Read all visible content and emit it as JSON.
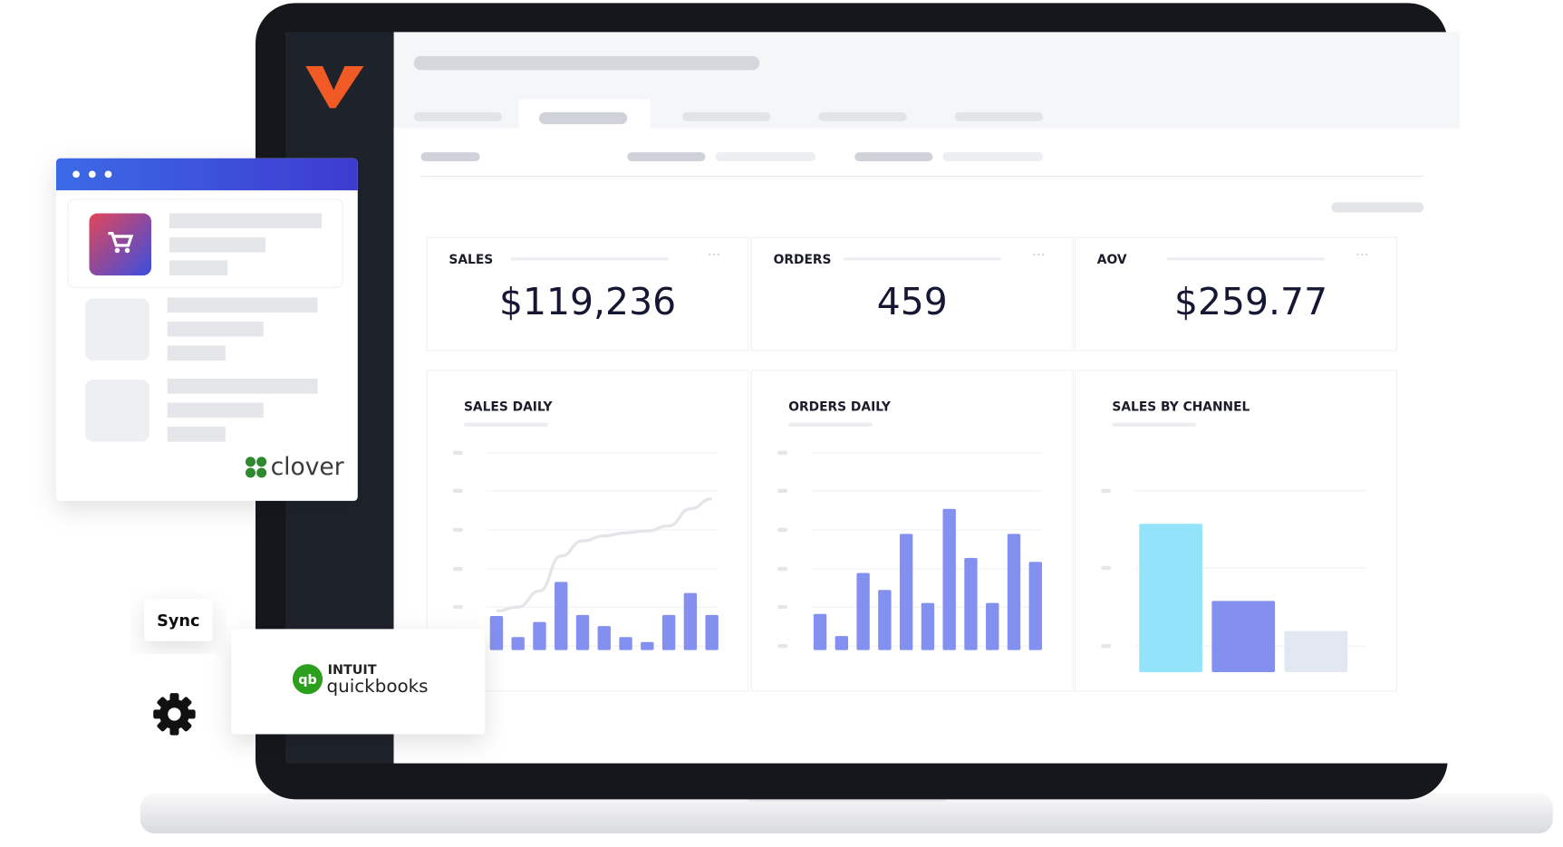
{
  "kpis": [
    {
      "label": "SALES",
      "value": "$119,236"
    },
    {
      "label": "ORDERS",
      "value": "459"
    },
    {
      "label": "AOV",
      "value": "$259.77"
    }
  ],
  "charts": [
    {
      "type": "bar",
      "title": "SALES DAILY",
      "values": [
        34,
        13,
        28,
        68,
        35,
        24,
        13,
        8,
        35,
        57,
        35
      ],
      "color": "#8490f0",
      "ylim": [
        0,
        200
      ],
      "line": {
        "values": [
          39,
          43,
          59,
          94,
          109,
          114,
          117,
          119,
          124,
          141,
          151
        ],
        "color": "#e4e5e9"
      }
    },
    {
      "type": "bar",
      "title": "ORDERS DAILY",
      "values": [
        36,
        14,
        77,
        60,
        116,
        47,
        141,
        92,
        47,
        116,
        88
      ],
      "color": "#8490f0",
      "ylim": [
        0,
        200
      ]
    },
    {
      "type": "bar",
      "title": "SALES BY CHANNEL",
      "values": [
        148,
        71,
        41
      ],
      "colors": [
        "#93e4fb",
        "#8490f0",
        "#e3e7f1"
      ],
      "ylim": [
        0,
        200
      ]
    }
  ],
  "clover": {
    "brand": "clover"
  },
  "sync": {
    "label": "Sync"
  },
  "quickbooks": {
    "brand_top": "INTUIT",
    "brand": "quickbooks"
  }
}
